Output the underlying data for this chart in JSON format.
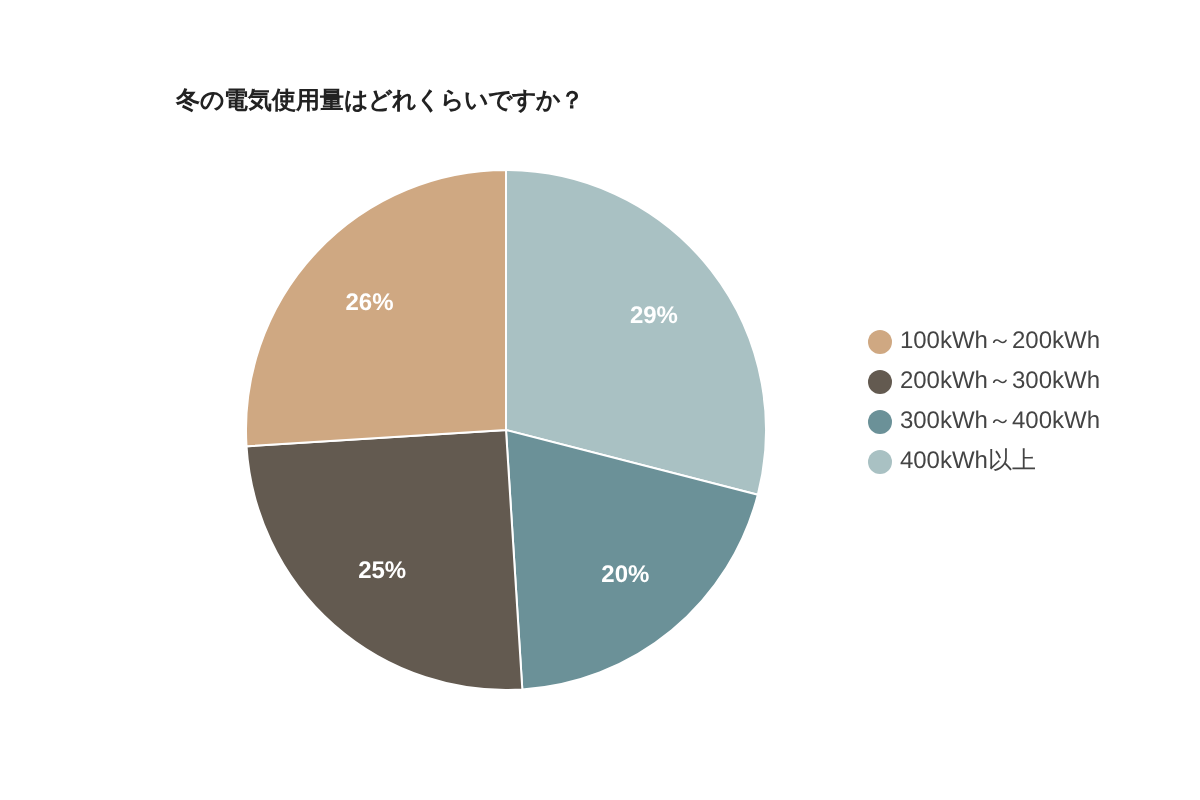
{
  "chart_data": {
    "type": "pie",
    "title": "冬の電気使用量はどれくらいですか？",
    "categories": [
      "400kWh以上",
      "300kWh～400kWh",
      "200kWh～300kWh",
      "100kWh～200kWh"
    ],
    "values": [
      29,
      20,
      25,
      26
    ],
    "value_labels": [
      "29%",
      "20%",
      "25%",
      "26%"
    ],
    "colors": [
      "#a9c1c3",
      "#6b9198",
      "#635a50",
      "#cfa882"
    ],
    "legend": "right"
  }
}
